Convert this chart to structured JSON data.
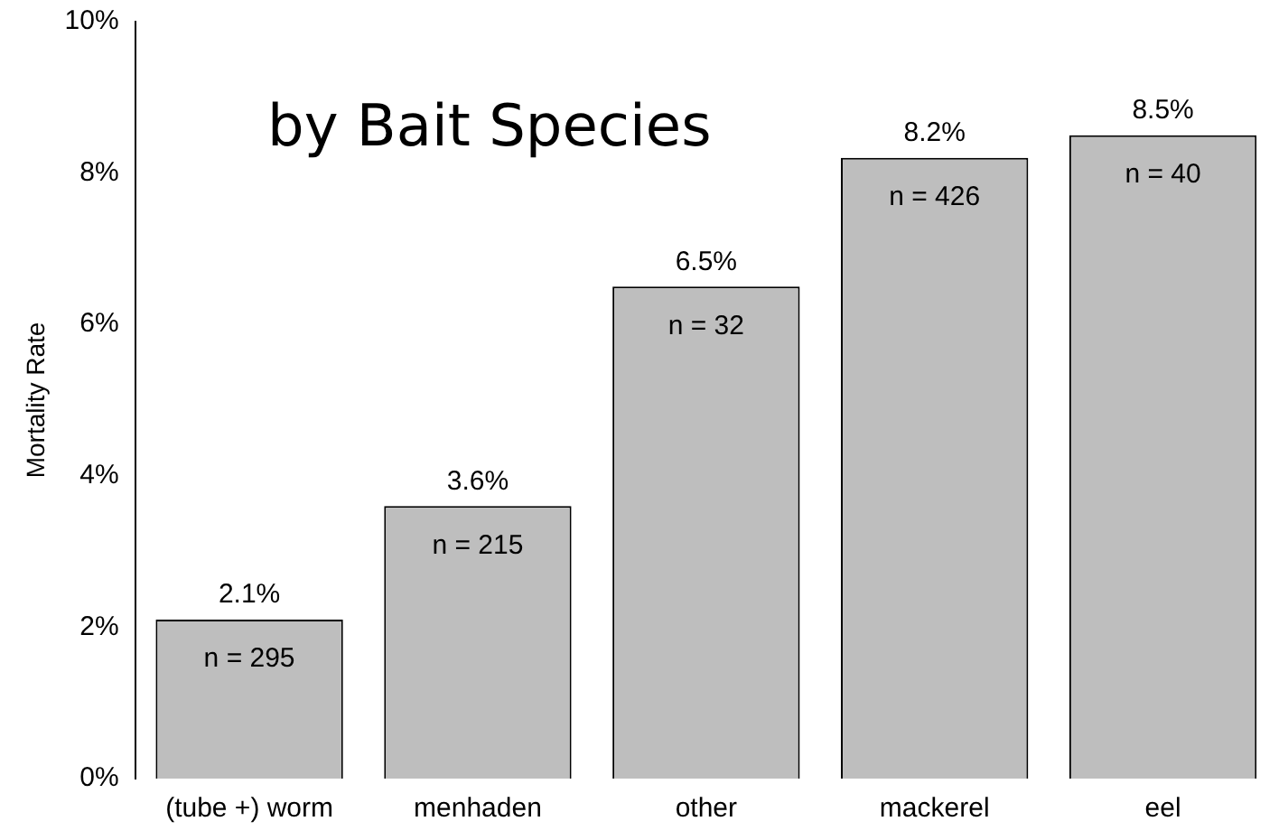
{
  "chart_data": {
    "type": "bar",
    "title": "by Bait Species",
    "ylabel": "Mortality Rate",
    "categories": [
      "(tube +) worm",
      "menhaden",
      "other",
      "mackerel",
      "eel"
    ],
    "values": [
      2.1,
      3.6,
      6.5,
      8.2,
      8.5
    ],
    "value_labels": [
      "2.1%",
      "3.6%",
      "6.5%",
      "8.2%",
      "8.5%"
    ],
    "color": "#bebebe",
    "ylim": [
      0,
      10
    ],
    "yticks": [
      {
        "value": 0,
        "label": "0%"
      },
      {
        "value": 2,
        "label": "2%"
      },
      {
        "value": 4,
        "label": "4%"
      },
      {
        "value": 6,
        "label": "6%"
      },
      {
        "value": 8,
        "label": "8%"
      },
      {
        "value": 10,
        "label": "10%"
      }
    ],
    "annotations": [
      "n = 295",
      "n = 215",
      "n = 32",
      "n = 426",
      "n = 40"
    ],
    "grid": false,
    "legend": false
  }
}
